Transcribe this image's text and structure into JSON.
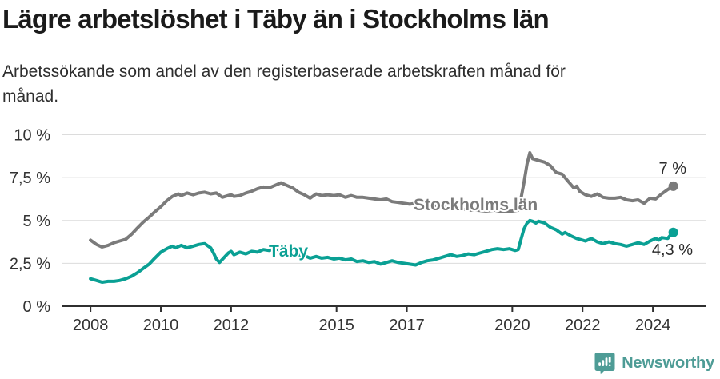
{
  "header": {
    "title": "Lägre arbetslöshet i Täby än i Stockholms län",
    "subtitle_lines": [
      "Arbetssökande som andel av den registerbaserade arbetskraften månad för",
      "månad."
    ]
  },
  "footer": {
    "brand": "Newsworthy",
    "brand_color": "#4e9c96",
    "logo_icon": "newsworthy-speech-bubble-bar-chart-icon"
  },
  "chart_data": {
    "type": "line",
    "xlabel": "",
    "ylabel": "",
    "xlim": [
      2007.2,
      2025.5
    ],
    "ylim": [
      0,
      10
    ],
    "grid": "horizontal",
    "legend_position": "inline-labels",
    "y_ticks": [
      {
        "value": 0,
        "label": "0 %"
      },
      {
        "value": 2.5,
        "label": "2,5 %"
      },
      {
        "value": 5,
        "label": "5 %"
      },
      {
        "value": 7.5,
        "label": "7,5 %"
      },
      {
        "value": 10,
        "label": "10 %"
      }
    ],
    "x_ticks": [
      {
        "value": 2008,
        "label": "2008"
      },
      {
        "value": 2010,
        "label": "2010"
      },
      {
        "value": 2012,
        "label": "2012"
      },
      {
        "value": 2015,
        "label": "2015"
      },
      {
        "value": 2017,
        "label": "2017"
      },
      {
        "value": 2020,
        "label": "2020"
      },
      {
        "value": 2022,
        "label": "2022"
      },
      {
        "value": 2024,
        "label": "2024"
      }
    ],
    "series": [
      {
        "name": "Stockholms län",
        "color": "#7b7b7b",
        "end_label": "7 %",
        "end_value": 7.0,
        "points": [
          [
            2008.0,
            3.85
          ],
          [
            2008.17,
            3.6
          ],
          [
            2008.33,
            3.45
          ],
          [
            2008.5,
            3.55
          ],
          [
            2008.67,
            3.7
          ],
          [
            2008.83,
            3.8
          ],
          [
            2009.0,
            3.9
          ],
          [
            2009.17,
            4.2
          ],
          [
            2009.33,
            4.55
          ],
          [
            2009.5,
            4.9
          ],
          [
            2009.67,
            5.2
          ],
          [
            2009.83,
            5.5
          ],
          [
            2010.0,
            5.8
          ],
          [
            2010.17,
            6.15
          ],
          [
            2010.33,
            6.4
          ],
          [
            2010.5,
            6.55
          ],
          [
            2010.58,
            6.45
          ],
          [
            2010.75,
            6.6
          ],
          [
            2010.92,
            6.5
          ],
          [
            2011.08,
            6.6
          ],
          [
            2011.25,
            6.65
          ],
          [
            2011.42,
            6.55
          ],
          [
            2011.58,
            6.6
          ],
          [
            2011.75,
            6.35
          ],
          [
            2011.92,
            6.45
          ],
          [
            2012.0,
            6.5
          ],
          [
            2012.08,
            6.4
          ],
          [
            2012.25,
            6.45
          ],
          [
            2012.42,
            6.6
          ],
          [
            2012.58,
            6.7
          ],
          [
            2012.75,
            6.85
          ],
          [
            2012.92,
            6.95
          ],
          [
            2013.08,
            6.9
          ],
          [
            2013.25,
            7.05
          ],
          [
            2013.42,
            7.2
          ],
          [
            2013.58,
            7.05
          ],
          [
            2013.75,
            6.9
          ],
          [
            2013.92,
            6.65
          ],
          [
            2014.08,
            6.5
          ],
          [
            2014.25,
            6.3
          ],
          [
            2014.42,
            6.55
          ],
          [
            2014.58,
            6.45
          ],
          [
            2014.75,
            6.5
          ],
          [
            2014.92,
            6.45
          ],
          [
            2015.08,
            6.5
          ],
          [
            2015.25,
            6.35
          ],
          [
            2015.42,
            6.45
          ],
          [
            2015.58,
            6.35
          ],
          [
            2015.75,
            6.35
          ],
          [
            2015.92,
            6.3
          ],
          [
            2016.08,
            6.25
          ],
          [
            2016.25,
            6.2
          ],
          [
            2016.42,
            6.25
          ],
          [
            2016.58,
            6.1
          ],
          [
            2016.75,
            6.05
          ],
          [
            2016.92,
            6.0
          ],
          [
            2017.08,
            5.95
          ],
          [
            2017.25,
            6.0
          ],
          [
            2017.5,
            5.9
          ],
          [
            2017.75,
            5.85
          ],
          [
            2018.0,
            5.8
          ],
          [
            2018.25,
            5.75
          ],
          [
            2018.5,
            5.7
          ],
          [
            2018.75,
            5.6
          ],
          [
            2019.0,
            5.6
          ],
          [
            2019.25,
            5.55
          ],
          [
            2019.5,
            5.6
          ],
          [
            2019.75,
            5.5
          ],
          [
            2020.0,
            5.55
          ],
          [
            2020.17,
            5.6
          ],
          [
            2020.25,
            6.3
          ],
          [
            2020.33,
            7.2
          ],
          [
            2020.42,
            8.3
          ],
          [
            2020.5,
            8.95
          ],
          [
            2020.58,
            8.6
          ],
          [
            2020.75,
            8.5
          ],
          [
            2020.92,
            8.4
          ],
          [
            2021.08,
            8.2
          ],
          [
            2021.25,
            7.8
          ],
          [
            2021.42,
            7.7
          ],
          [
            2021.58,
            7.3
          ],
          [
            2021.75,
            6.9
          ],
          [
            2021.83,
            7.0
          ],
          [
            2021.92,
            6.7
          ],
          [
            2022.08,
            6.5
          ],
          [
            2022.25,
            6.4
          ],
          [
            2022.42,
            6.55
          ],
          [
            2022.58,
            6.35
          ],
          [
            2022.75,
            6.3
          ],
          [
            2022.92,
            6.3
          ],
          [
            2023.08,
            6.35
          ],
          [
            2023.25,
            6.2
          ],
          [
            2023.42,
            6.15
          ],
          [
            2023.58,
            6.2
          ],
          [
            2023.75,
            6.0
          ],
          [
            2023.92,
            6.3
          ],
          [
            2024.08,
            6.25
          ],
          [
            2024.25,
            6.55
          ],
          [
            2024.42,
            6.8
          ],
          [
            2024.58,
            7.0
          ]
        ]
      },
      {
        "name": "Täby",
        "color": "#0aa094",
        "end_label": "4,3 %",
        "end_value": 4.3,
        "points": [
          [
            2008.0,
            1.6
          ],
          [
            2008.17,
            1.5
          ],
          [
            2008.33,
            1.4
          ],
          [
            2008.5,
            1.45
          ],
          [
            2008.67,
            1.45
          ],
          [
            2008.83,
            1.5
          ],
          [
            2009.0,
            1.6
          ],
          [
            2009.17,
            1.75
          ],
          [
            2009.33,
            1.95
          ],
          [
            2009.5,
            2.2
          ],
          [
            2009.67,
            2.45
          ],
          [
            2009.83,
            2.8
          ],
          [
            2010.0,
            3.15
          ],
          [
            2010.17,
            3.35
          ],
          [
            2010.33,
            3.5
          ],
          [
            2010.42,
            3.4
          ],
          [
            2010.58,
            3.55
          ],
          [
            2010.75,
            3.4
          ],
          [
            2010.92,
            3.5
          ],
          [
            2011.08,
            3.6
          ],
          [
            2011.25,
            3.65
          ],
          [
            2011.42,
            3.4
          ],
          [
            2011.5,
            3.1
          ],
          [
            2011.58,
            2.75
          ],
          [
            2011.67,
            2.55
          ],
          [
            2011.83,
            2.9
          ],
          [
            2011.92,
            3.1
          ],
          [
            2012.0,
            3.2
          ],
          [
            2012.08,
            3.0
          ],
          [
            2012.25,
            3.15
          ],
          [
            2012.42,
            3.05
          ],
          [
            2012.58,
            3.2
          ],
          [
            2012.75,
            3.15
          ],
          [
            2012.92,
            3.3
          ],
          [
            2013.08,
            3.25
          ],
          [
            2013.25,
            3.35
          ],
          [
            2013.42,
            3.25
          ],
          [
            2013.58,
            3.2
          ],
          [
            2013.75,
            3.1
          ],
          [
            2013.92,
            3.0
          ],
          [
            2014.08,
            2.95
          ],
          [
            2014.25,
            2.8
          ],
          [
            2014.42,
            2.9
          ],
          [
            2014.58,
            2.8
          ],
          [
            2014.75,
            2.85
          ],
          [
            2014.92,
            2.75
          ],
          [
            2015.08,
            2.8
          ],
          [
            2015.25,
            2.7
          ],
          [
            2015.42,
            2.75
          ],
          [
            2015.58,
            2.6
          ],
          [
            2015.75,
            2.65
          ],
          [
            2015.92,
            2.55
          ],
          [
            2016.08,
            2.6
          ],
          [
            2016.25,
            2.45
          ],
          [
            2016.42,
            2.55
          ],
          [
            2016.58,
            2.65
          ],
          [
            2016.75,
            2.55
          ],
          [
            2016.92,
            2.5
          ],
          [
            2017.08,
            2.45
          ],
          [
            2017.25,
            2.4
          ],
          [
            2017.42,
            2.55
          ],
          [
            2017.58,
            2.65
          ],
          [
            2017.75,
            2.7
          ],
          [
            2017.92,
            2.8
          ],
          [
            2018.08,
            2.9
          ],
          [
            2018.25,
            3.0
          ],
          [
            2018.42,
            2.9
          ],
          [
            2018.58,
            2.95
          ],
          [
            2018.75,
            3.05
          ],
          [
            2018.92,
            3.0
          ],
          [
            2019.08,
            3.1
          ],
          [
            2019.25,
            3.2
          ],
          [
            2019.42,
            3.3
          ],
          [
            2019.58,
            3.35
          ],
          [
            2019.75,
            3.3
          ],
          [
            2019.92,
            3.35
          ],
          [
            2020.08,
            3.25
          ],
          [
            2020.17,
            3.3
          ],
          [
            2020.25,
            3.9
          ],
          [
            2020.33,
            4.5
          ],
          [
            2020.42,
            4.85
          ],
          [
            2020.5,
            5.0
          ],
          [
            2020.58,
            4.95
          ],
          [
            2020.67,
            4.85
          ],
          [
            2020.75,
            4.95
          ],
          [
            2020.92,
            4.85
          ],
          [
            2021.08,
            4.6
          ],
          [
            2021.25,
            4.45
          ],
          [
            2021.42,
            4.2
          ],
          [
            2021.5,
            4.3
          ],
          [
            2021.67,
            4.1
          ],
          [
            2021.83,
            3.95
          ],
          [
            2022.0,
            3.85
          ],
          [
            2022.08,
            3.8
          ],
          [
            2022.25,
            3.95
          ],
          [
            2022.42,
            3.75
          ],
          [
            2022.58,
            3.65
          ],
          [
            2022.75,
            3.75
          ],
          [
            2022.92,
            3.65
          ],
          [
            2023.08,
            3.6
          ],
          [
            2023.25,
            3.5
          ],
          [
            2023.42,
            3.6
          ],
          [
            2023.58,
            3.7
          ],
          [
            2023.75,
            3.6
          ],
          [
            2023.92,
            3.8
          ],
          [
            2024.08,
            3.95
          ],
          [
            2024.17,
            3.85
          ],
          [
            2024.25,
            4.0
          ],
          [
            2024.42,
            3.95
          ],
          [
            2024.5,
            4.15
          ],
          [
            2024.58,
            4.3
          ]
        ]
      }
    ]
  }
}
